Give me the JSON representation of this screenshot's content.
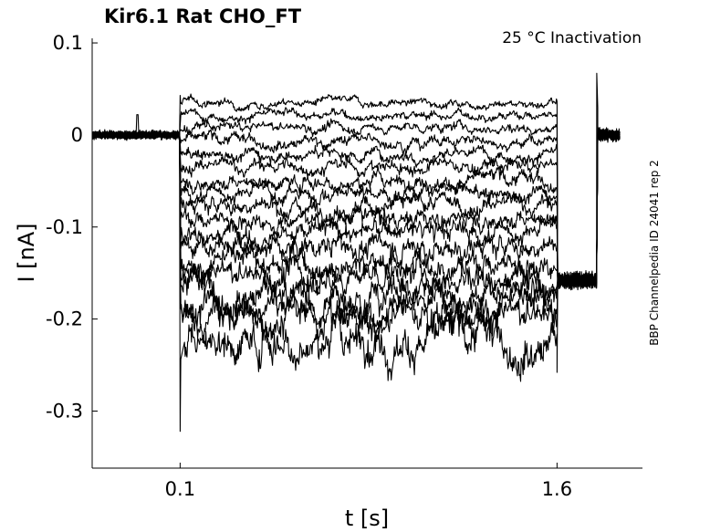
{
  "chart_data": {
    "type": "line",
    "title": "Kir6.1  Rat  CHO_FT",
    "annotation": "25 °C  Inactivation",
    "side_label": "BBP Channelpedia ID 24041 rep 2",
    "xlabel": "t [s]",
    "ylabel": "I [nA]",
    "xlim": [
      -0.25,
      1.94
    ],
    "ylim": [
      -0.362,
      0.105
    ],
    "xticks": [
      0.1,
      1.6
    ],
    "xtick_labels": [
      "0.1",
      "1.6"
    ],
    "yticks": [
      0.1,
      0,
      -0.1,
      -0.2,
      -0.3
    ],
    "ytick_labels": [
      "0.1",
      "0",
      "-0.1",
      "-0.2",
      "-0.3"
    ],
    "grid": false,
    "legend": "none",
    "stimulus_start": 0.1,
    "stimulus_end": 1.6,
    "trace_end": 1.85,
    "baseline_pre": 0.0,
    "tail_current": -0.158,
    "pulse_peak": 0.067,
    "onset_transient_min": -0.322,
    "series": [
      {
        "steady": 0.035,
        "noise": 0.0018
      },
      {
        "steady": 0.022,
        "noise": 0.002
      },
      {
        "steady": 0.008,
        "noise": 0.0022
      },
      {
        "steady": -0.006,
        "noise": 0.0025
      },
      {
        "steady": -0.02,
        "noise": 0.0028
      },
      {
        "steady": -0.035,
        "noise": 0.003
      },
      {
        "steady": -0.05,
        "noise": 0.0032
      },
      {
        "steady": -0.063,
        "noise": 0.0035
      },
      {
        "steady": -0.077,
        "noise": 0.0038
      },
      {
        "steady": -0.09,
        "noise": 0.004
      },
      {
        "steady": -0.105,
        "noise": 0.0045
      },
      {
        "steady": -0.122,
        "noise": 0.005
      },
      {
        "steady": -0.138,
        "noise": 0.0055
      },
      {
        "steady": -0.153,
        "noise": 0.006
      },
      {
        "steady": -0.168,
        "noise": 0.0065
      },
      {
        "steady": -0.183,
        "noise": 0.007
      },
      {
        "steady": -0.197,
        "noise": 0.0075
      },
      {
        "steady": -0.222,
        "noise": 0.0085
      }
    ]
  }
}
